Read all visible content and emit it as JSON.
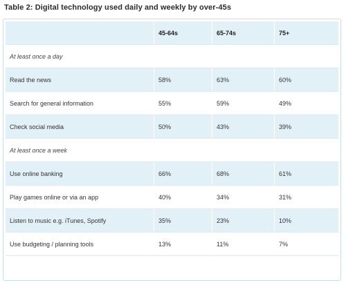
{
  "caption": "Table 2: Digital technology used daily and weekly by over-45s",
  "columns": [
    "",
    "45-64s",
    "65-74s",
    "75+"
  ],
  "rows": [
    {
      "label": "At least once a day",
      "section": true,
      "values": [
        "",
        "",
        ""
      ]
    },
    {
      "label": "Read the news",
      "section": false,
      "values": [
        "58%",
        "63%",
        "60%"
      ]
    },
    {
      "label": "Search for general information",
      "section": false,
      "values": [
        "55%",
        "59%",
        "49%"
      ]
    },
    {
      "label": "Check social media",
      "section": false,
      "values": [
        "50%",
        "43%",
        "39%"
      ]
    },
    {
      "label": "At least once a week",
      "section": true,
      "values": [
        "",
        "",
        ""
      ]
    },
    {
      "label": "Use online banking",
      "section": false,
      "values": [
        "66%",
        "68%",
        "61%"
      ]
    },
    {
      "label": "Play games online or via an app",
      "section": false,
      "values": [
        "40%",
        "34%",
        "31%"
      ]
    },
    {
      "label": "Listen to music e.g. iTunes, Spotify",
      "section": false,
      "values": [
        "35%",
        "23%",
        "10%"
      ]
    },
    {
      "label": "Use budgeting / planning tools",
      "section": false,
      "values": [
        "13%",
        "11%",
        "7%"
      ]
    }
  ],
  "colors": {
    "row_shade": "#e2f1f8",
    "border": "#c9dbe6"
  }
}
